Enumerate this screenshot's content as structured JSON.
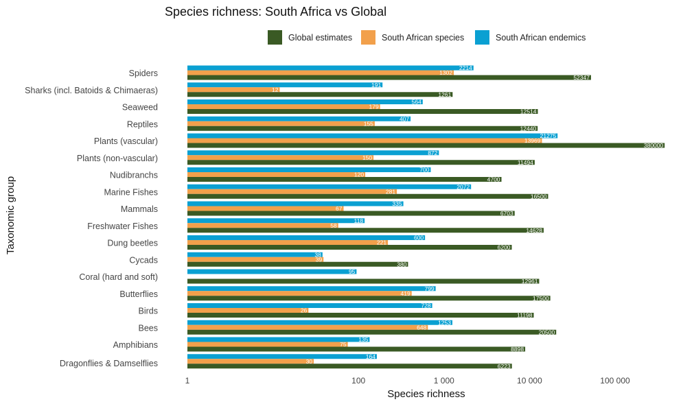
{
  "chart_data": {
    "type": "bar",
    "orientation": "horizontal",
    "title": "Species richness: South Africa vs Global",
    "xlabel": "Species richness",
    "ylabel": "Taxonomic group",
    "x_scale": "log10",
    "xlim": [
      1,
      380000
    ],
    "x_ticks": [
      1,
      100,
      1000,
      10000,
      100000
    ],
    "x_tick_labels": [
      "1",
      "100",
      "1 000",
      "10 000",
      "100 000"
    ],
    "grid": false,
    "legend_position": "top",
    "colors": {
      "global": "#3a5a24",
      "sa": "#f2a04b",
      "endemic": "#0aa0d2"
    },
    "categories": [
      "Spiders",
      "Sharks (incl. Batoids & Chimaeras)",
      "Seaweed",
      "Reptiles",
      "Plants (vascular)",
      "Plants (non-vascular)",
      "Nudibranchs",
      "Marine Fishes",
      "Mammals",
      "Freshwater Fishes",
      "Dung beetles",
      "Cycads",
      "Coral (hard and soft)",
      "Butterflies",
      "Birds",
      "Bees",
      "Amphibians",
      "Dragonflies & Damselflies"
    ],
    "series": [
      {
        "name": "South African endemics",
        "key": "endemic",
        "values": [
          2214,
          191,
          564,
          407,
          21275,
          872,
          700,
          2072,
          335,
          118,
          600,
          38,
          95,
          799,
          728,
          1253,
          135,
          164
        ],
        "labels": [
          "2214",
          "191",
          "564",
          "407",
          "21275",
          "872",
          "700",
          "2072",
          "335",
          "118",
          "600",
          "38",
          "95",
          "799",
          "728",
          "1253",
          "135",
          "164"
        ]
      },
      {
        "name": "South African species",
        "key": "sa",
        "values": [
          1302,
          12,
          179,
          155,
          13969,
          150,
          120,
          281,
          67,
          58,
          221,
          39,
          null,
          419,
          26,
          648,
          75,
          30
        ],
        "labels": [
          "1302",
          "12",
          "179",
          "155",
          "13969",
          "150",
          "120",
          "281",
          "67",
          "58",
          "221",
          "39",
          "",
          "419",
          "26",
          "648",
          "75",
          "30"
        ]
      },
      {
        "name": "Global estimates",
        "key": "global",
        "values": [
          52347,
          1261,
          12514,
          12440,
          380000,
          11494,
          4700,
          16500,
          6703,
          14628,
          6200,
          380,
          12961,
          17500,
          11198,
          20500,
          8898,
          6223
        ],
        "labels": [
          "52347",
          "1261",
          "12514",
          "12440",
          "380000",
          "11494",
          "4700",
          "16500",
          "6703",
          "14628",
          "6200",
          "380",
          "12961",
          "17500",
          "11198",
          "20500",
          "8898",
          "6223"
        ]
      }
    ],
    "legend": [
      {
        "key": "global",
        "label": "Global estimates"
      },
      {
        "key": "sa",
        "label": "South African species"
      },
      {
        "key": "endemic",
        "label": "South African endemics"
      }
    ]
  }
}
